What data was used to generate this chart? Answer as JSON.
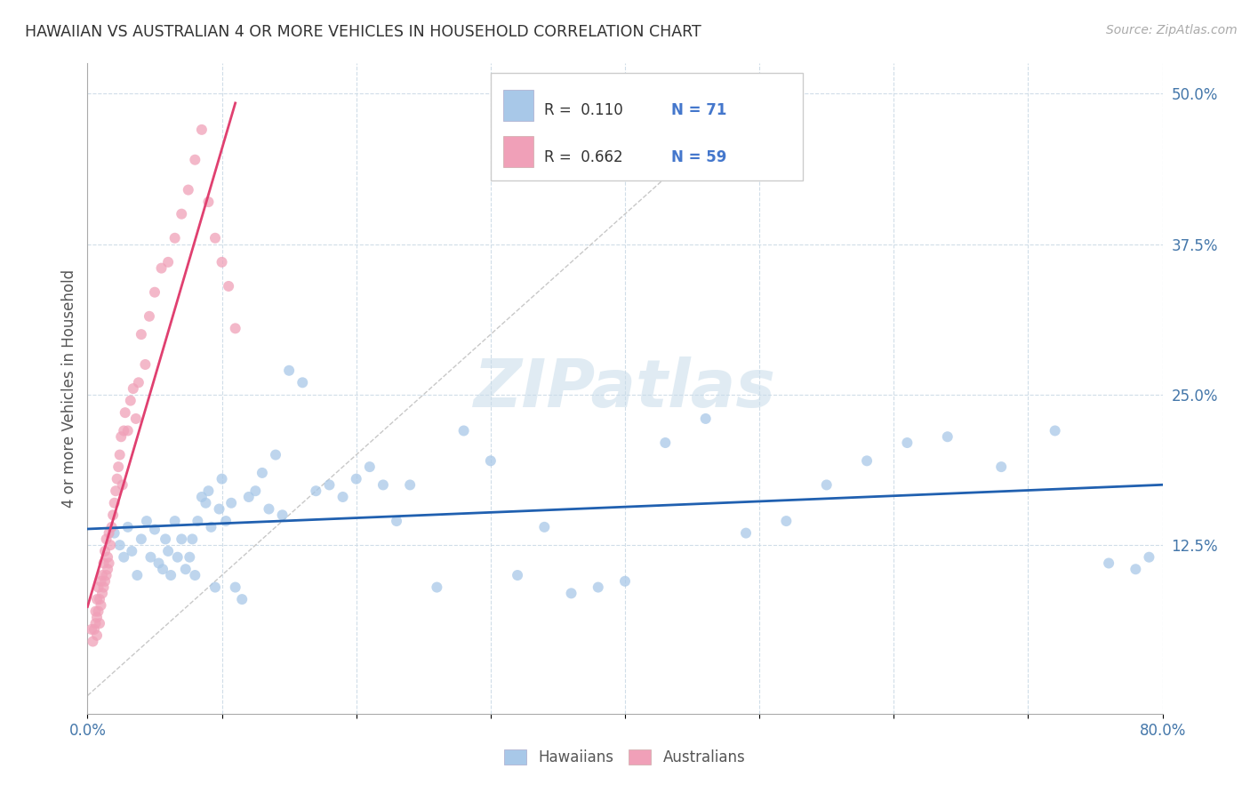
{
  "title": "HAWAIIAN VS AUSTRALIAN 4 OR MORE VEHICLES IN HOUSEHOLD CORRELATION CHART",
  "source": "Source: ZipAtlas.com",
  "ylabel": "4 or more Vehicles in Household",
  "xlim": [
    0.0,
    0.8
  ],
  "ylim": [
    -0.015,
    0.525
  ],
  "xticks": [
    0.0,
    0.1,
    0.2,
    0.3,
    0.4,
    0.5,
    0.6,
    0.7,
    0.8
  ],
  "xticklabels": [
    "0.0%",
    "",
    "",
    "",
    "",
    "",
    "",
    "",
    "80.0%"
  ],
  "yticks_right": [
    0.125,
    0.25,
    0.375,
    0.5
  ],
  "ytick_right_labels": [
    "12.5%",
    "25.0%",
    "37.5%",
    "50.0%"
  ],
  "watermark": "ZIPatlas",
  "color_hawaii": "#a8c8e8",
  "color_australia": "#f0a0b8",
  "trendline_hawaii_color": "#2060b0",
  "trendline_australia_color": "#e04070",
  "diagonal_color": "#c8c8c8",
  "background": "#ffffff",
  "grid_color": "#d0dde8",
  "hawaiians_x": [
    0.02,
    0.024,
    0.027,
    0.03,
    0.033,
    0.037,
    0.04,
    0.044,
    0.047,
    0.05,
    0.053,
    0.056,
    0.058,
    0.06,
    0.062,
    0.065,
    0.067,
    0.07,
    0.073,
    0.076,
    0.078,
    0.08,
    0.082,
    0.085,
    0.088,
    0.09,
    0.092,
    0.095,
    0.098,
    0.1,
    0.103,
    0.107,
    0.11,
    0.115,
    0.12,
    0.125,
    0.13,
    0.135,
    0.14,
    0.145,
    0.15,
    0.16,
    0.17,
    0.18,
    0.19,
    0.2,
    0.21,
    0.22,
    0.23,
    0.24,
    0.26,
    0.28,
    0.3,
    0.32,
    0.34,
    0.36,
    0.38,
    0.4,
    0.43,
    0.46,
    0.49,
    0.52,
    0.55,
    0.58,
    0.61,
    0.64,
    0.68,
    0.72,
    0.76,
    0.78,
    0.79
  ],
  "hawaiians_y": [
    0.135,
    0.125,
    0.115,
    0.14,
    0.12,
    0.1,
    0.13,
    0.145,
    0.115,
    0.138,
    0.11,
    0.105,
    0.13,
    0.12,
    0.1,
    0.145,
    0.115,
    0.13,
    0.105,
    0.115,
    0.13,
    0.1,
    0.145,
    0.165,
    0.16,
    0.17,
    0.14,
    0.09,
    0.155,
    0.18,
    0.145,
    0.16,
    0.09,
    0.08,
    0.165,
    0.17,
    0.185,
    0.155,
    0.2,
    0.15,
    0.27,
    0.26,
    0.17,
    0.175,
    0.165,
    0.18,
    0.19,
    0.175,
    0.145,
    0.175,
    0.09,
    0.22,
    0.195,
    0.1,
    0.14,
    0.085,
    0.09,
    0.095,
    0.21,
    0.23,
    0.135,
    0.145,
    0.175,
    0.195,
    0.21,
    0.215,
    0.19,
    0.22,
    0.11,
    0.105,
    0.115
  ],
  "australians_x": [
    0.003,
    0.004,
    0.005,
    0.006,
    0.006,
    0.007,
    0.007,
    0.007,
    0.008,
    0.008,
    0.009,
    0.009,
    0.01,
    0.01,
    0.011,
    0.011,
    0.012,
    0.012,
    0.013,
    0.013,
    0.014,
    0.014,
    0.015,
    0.015,
    0.016,
    0.016,
    0.017,
    0.018,
    0.019,
    0.02,
    0.021,
    0.022,
    0.023,
    0.024,
    0.025,
    0.026,
    0.027,
    0.028,
    0.03,
    0.032,
    0.034,
    0.036,
    0.038,
    0.04,
    0.043,
    0.046,
    0.05,
    0.055,
    0.06,
    0.065,
    0.07,
    0.075,
    0.08,
    0.085,
    0.09,
    0.095,
    0.1,
    0.105,
    0.11
  ],
  "australians_y": [
    0.055,
    0.045,
    0.055,
    0.06,
    0.07,
    0.05,
    0.065,
    0.08,
    0.07,
    0.09,
    0.06,
    0.08,
    0.075,
    0.095,
    0.085,
    0.1,
    0.09,
    0.11,
    0.095,
    0.12,
    0.1,
    0.13,
    0.105,
    0.115,
    0.11,
    0.135,
    0.125,
    0.14,
    0.15,
    0.16,
    0.17,
    0.18,
    0.19,
    0.2,
    0.215,
    0.175,
    0.22,
    0.235,
    0.22,
    0.245,
    0.255,
    0.23,
    0.26,
    0.3,
    0.275,
    0.315,
    0.335,
    0.355,
    0.36,
    0.38,
    0.4,
    0.42,
    0.445,
    0.47,
    0.41,
    0.38,
    0.36,
    0.34,
    0.305
  ]
}
